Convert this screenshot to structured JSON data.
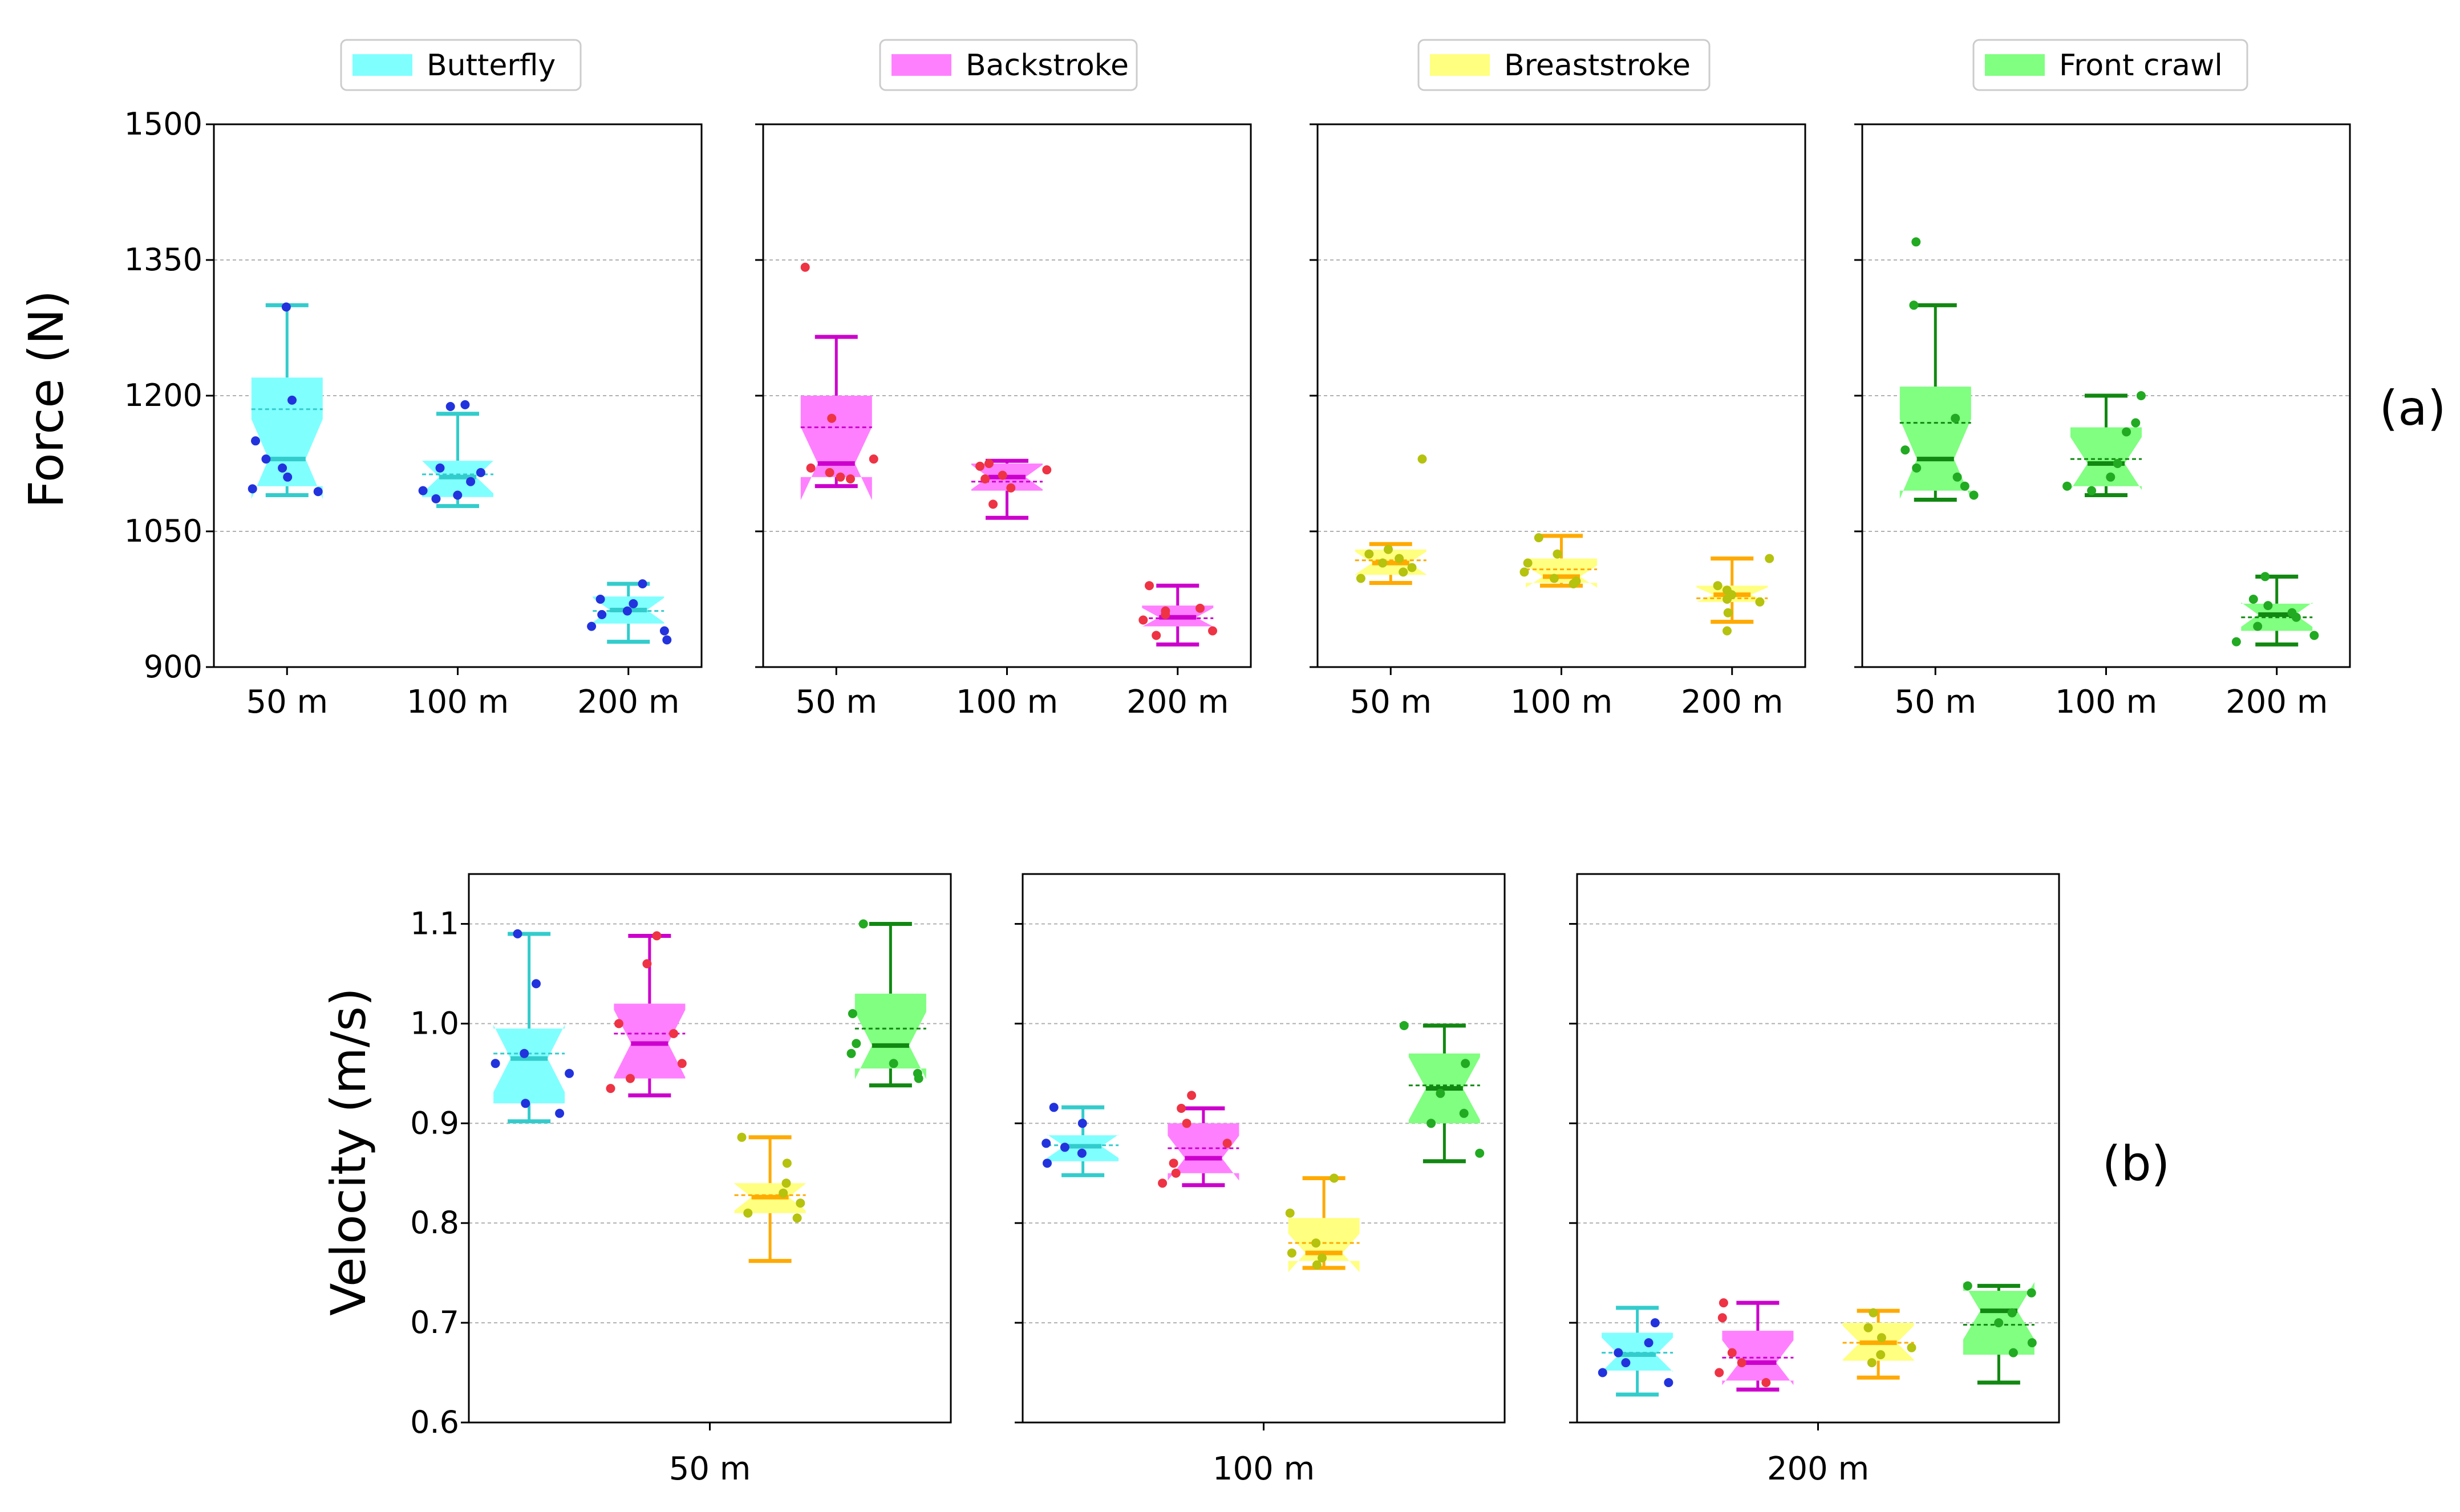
{
  "chart_data": [
    {
      "panel_label": "(a)",
      "type": "box",
      "title": "",
      "ylabel": "Force (N)",
      "xlabel": "",
      "ylim": [
        900,
        1500
      ],
      "yticks": [
        900,
        1050,
        1200,
        1350,
        1500
      ],
      "grid": "horizontal dashed",
      "categories": [
        "50 m",
        "100 m",
        "200 m"
      ],
      "series": [
        {
          "name": "Butterfly",
          "color": "#33cccc",
          "fill": "#80ffff",
          "dot_color": "#2233dd",
          "boxes": [
            {
              "whisker_low": 1090,
              "q1": 1100,
              "median": 1130,
              "mean": 1185,
              "q3": 1220,
              "whisker_high": 1300,
              "points": [
                1298,
                1195,
                1150,
                1130,
                1120,
                1110,
                1097,
                1094
              ]
            },
            {
              "whisker_low": 1078,
              "q1": 1088,
              "median": 1110,
              "mean": 1113,
              "q3": 1128,
              "whisker_high": 1180,
              "points": [
                1190,
                1188,
                1120,
                1115,
                1105,
                1095,
                1090,
                1086
              ]
            },
            {
              "whisker_low": 928,
              "q1": 948,
              "median": 963,
              "mean": 962,
              "q3": 978,
              "whisker_high": 992,
              "points": [
                992,
                975,
                970,
                962,
                958,
                945,
                940,
                930
              ]
            }
          ]
        },
        {
          "name": "Backstroke",
          "color": "#cc00cc",
          "fill": "#ff80ff",
          "dot_color": "#ee3344",
          "boxes": [
            {
              "whisker_low": 1100,
              "q1": 1110,
              "median": 1125,
              "mean": 1165,
              "q3": 1200,
              "whisker_high": 1265,
              "points": [
                1342,
                1175,
                1130,
                1120,
                1115,
                1110,
                1108
              ]
            },
            {
              "whisker_low": 1065,
              "q1": 1095,
              "median": 1110,
              "mean": 1105,
              "q3": 1125,
              "whisker_high": 1128,
              "points": [
                1125,
                1122,
                1118,
                1112,
                1108,
                1098,
                1080
              ]
            },
            {
              "whisker_low": 925,
              "q1": 945,
              "median": 955,
              "mean": 954,
              "q3": 968,
              "whisker_high": 990,
              "points": [
                990,
                965,
                962,
                958,
                952,
                940,
                935
              ]
            }
          ]
        },
        {
          "name": "Breaststroke",
          "color": "#ffaa00",
          "fill": "#ffff80",
          "dot_color": "#b5c20e",
          "boxes": [
            {
              "whisker_low": 993,
              "q1": 1002,
              "median": 1015,
              "mean": 1018,
              "q3": 1030,
              "whisker_high": 1036,
              "points": [
                1130,
                1030,
                1025,
                1020,
                1015,
                1010,
                1005,
                998
              ]
            },
            {
              "whisker_low": 990,
              "q1": 993,
              "median": 1000,
              "mean": 1008,
              "q3": 1020,
              "whisker_high": 1045,
              "points": [
                1043,
                1025,
                1015,
                1005,
                998,
                995,
                992
              ]
            },
            {
              "whisker_low": 950,
              "q1": 972,
              "median": 980,
              "mean": 976,
              "q3": 990,
              "whisker_high": 1020,
              "points": [
                1020,
                990,
                985,
                980,
                975,
                972,
                960,
                940
              ]
            }
          ]
        },
        {
          "name": "Front crawl",
          "color": "#118811",
          "fill": "#80ff80",
          "dot_color": "#22aa22",
          "boxes": [
            {
              "whisker_low": 1085,
              "q1": 1095,
              "median": 1130,
              "mean": 1170,
              "q3": 1210,
              "whisker_high": 1300,
              "points": [
                1370,
                1300,
                1175,
                1140,
                1120,
                1110,
                1100,
                1090
              ]
            },
            {
              "whisker_low": 1090,
              "q1": 1100,
              "median": 1125,
              "mean": 1130,
              "q3": 1165,
              "whisker_high": 1200,
              "points": [
                1200,
                1170,
                1160,
                1125,
                1110,
                1100,
                1095
              ]
            },
            {
              "whisker_low": 925,
              "q1": 940,
              "median": 958,
              "mean": 955,
              "q3": 970,
              "whisker_high": 1000,
              "points": [
                1000,
                975,
                968,
                960,
                955,
                945,
                935,
                928
              ]
            }
          ]
        }
      ]
    },
    {
      "panel_label": "(b)",
      "type": "box",
      "title": "",
      "ylabel": "Velocity (m/s)",
      "xlabel": "",
      "ylim": [
        0.6,
        1.15
      ],
      "yticks": [
        0.6,
        0.7,
        0.8,
        0.9,
        1.0,
        1.1
      ],
      "ytick_labels": [
        "0.6",
        "0.7",
        "0.8",
        "0.9",
        "1.0",
        "1.1"
      ],
      "grid": "horizontal dashed",
      "categories": [
        "50 m",
        "100 m",
        "200 m"
      ],
      "series_order": [
        "Butterfly",
        "Backstroke",
        "Breaststroke",
        "Front crawl"
      ],
      "colors": [
        "#33cccc",
        "#cc00cc",
        "#ffaa00",
        "#118811"
      ],
      "fills": [
        "#80ffff",
        "#ff80ff",
        "#ffff80",
        "#80ff80"
      ],
      "dot_colors": [
        "#2233dd",
        "#ee3344",
        "#b5c20e",
        "#22aa22"
      ],
      "boxes": [
        [
          {
            "whisker_low": 0.902,
            "q1": 0.92,
            "median": 0.965,
            "mean": 0.97,
            "q3": 0.995,
            "whisker_high": 1.09,
            "points": [
              1.09,
              1.04,
              0.97,
              0.96,
              0.95,
              0.92,
              0.91
            ]
          },
          {
            "whisker_low": 0.928,
            "q1": 0.945,
            "median": 0.98,
            "mean": 0.99,
            "q3": 1.02,
            "whisker_high": 1.088,
            "points": [
              1.088,
              1.06,
              1.0,
              0.99,
              0.96,
              0.945,
              0.935
            ]
          },
          {
            "whisker_low": 0.762,
            "q1": 0.81,
            "median": 0.826,
            "mean": 0.828,
            "q3": 0.84,
            "whisker_high": 0.886,
            "points": [
              0.886,
              0.86,
              0.84,
              0.83,
              0.82,
              0.81,
              0.805
            ]
          },
          {
            "whisker_low": 0.938,
            "q1": 0.955,
            "median": 0.978,
            "mean": 0.995,
            "q3": 1.03,
            "whisker_high": 1.1,
            "points": [
              1.1,
              1.01,
              0.98,
              0.97,
              0.96,
              0.95,
              0.945
            ]
          }
        ],
        [
          {
            "whisker_low": 0.848,
            "q1": 0.862,
            "median": 0.877,
            "mean": 0.878,
            "q3": 0.888,
            "whisker_high": 0.916,
            "points": [
              0.916,
              0.9,
              0.88,
              0.876,
              0.87,
              0.86
            ]
          },
          {
            "whisker_low": 0.838,
            "q1": 0.85,
            "median": 0.865,
            "mean": 0.875,
            "q3": 0.9,
            "whisker_high": 0.915,
            "points": [
              0.928,
              0.915,
              0.9,
              0.88,
              0.86,
              0.85,
              0.84
            ]
          },
          {
            "whisker_low": 0.755,
            "q1": 0.762,
            "median": 0.77,
            "mean": 0.78,
            "q3": 0.805,
            "whisker_high": 0.845,
            "points": [
              0.845,
              0.81,
              0.78,
              0.77,
              0.765,
              0.758
            ]
          },
          {
            "whisker_low": 0.862,
            "q1": 0.9,
            "median": 0.935,
            "mean": 0.938,
            "q3": 0.97,
            "whisker_high": 0.998,
            "points": [
              0.998,
              0.96,
              0.93,
              0.91,
              0.9,
              0.87
            ]
          }
        ],
        [
          {
            "whisker_low": 0.628,
            "q1": 0.652,
            "median": 0.668,
            "mean": 0.67,
            "q3": 0.69,
            "whisker_high": 0.715,
            "points": [
              0.7,
              0.68,
              0.67,
              0.66,
              0.65,
              0.64
            ]
          },
          {
            "whisker_low": 0.633,
            "q1": 0.642,
            "median": 0.66,
            "mean": 0.665,
            "q3": 0.692,
            "whisker_high": 0.72,
            "points": [
              0.72,
              0.705,
              0.67,
              0.66,
              0.65,
              0.64
            ]
          },
          {
            "whisker_low": 0.645,
            "q1": 0.662,
            "median": 0.68,
            "mean": 0.68,
            "q3": 0.7,
            "whisker_high": 0.712,
            "points": [
              0.71,
              0.695,
              0.685,
              0.675,
              0.668,
              0.66
            ]
          },
          {
            "whisker_low": 0.64,
            "q1": 0.668,
            "median": 0.712,
            "mean": 0.698,
            "q3": 0.732,
            "whisker_high": 0.737,
            "points": [
              0.737,
              0.73,
              0.71,
              0.7,
              0.68,
              0.67
            ]
          }
        ]
      ]
    }
  ]
}
